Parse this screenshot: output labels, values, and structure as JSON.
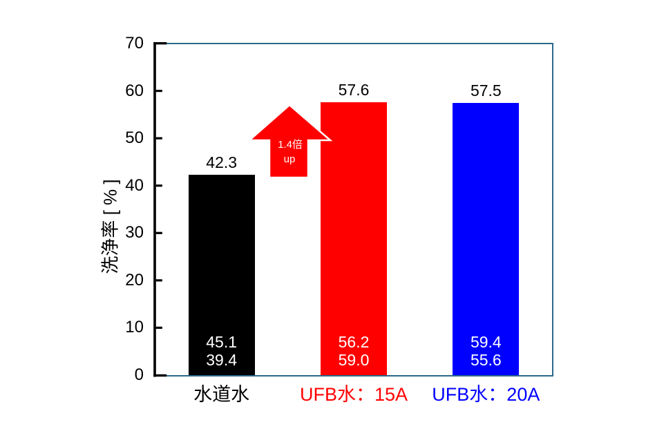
{
  "page": {
    "background": "#FFFFFF"
  },
  "chart_data": {
    "type": "bar",
    "title": "",
    "xlabel": "",
    "ylabel": "洗浄率 [ % ]",
    "ylim": [
      0,
      70
    ],
    "yticks": [
      0,
      10,
      20,
      30,
      40,
      50,
      60,
      70
    ],
    "grid": false,
    "legend": "none",
    "categories": [
      "水道水",
      "UFB水：15A",
      "UFB水：20A"
    ],
    "values": [
      42.3,
      57.6,
      57.5
    ],
    "bar_value_labels": [
      "42.3",
      "57.6",
      "57.5"
    ],
    "bar_inner_labels": [
      [
        "45.1",
        "39.4"
      ],
      [
        "56.2",
        "59.0"
      ],
      [
        "59.4",
        "55.6"
      ]
    ],
    "bar_colors": [
      "#000000",
      "#FF0000",
      "#0000FF"
    ],
    "category_label_colors": [
      "#000000",
      "#FF0000",
      "#0000FF"
    ],
    "frame_color": "#2A698A",
    "axis_color": "#000000",
    "annotation": {
      "line1": "1.4倍",
      "line2": "up",
      "arrow_color": "#FF0000",
      "outline_color": "#FFFFFF",
      "text_color": "#FFFFFF",
      "meaning": "increase from 水道水 to UFB水：15A"
    }
  }
}
